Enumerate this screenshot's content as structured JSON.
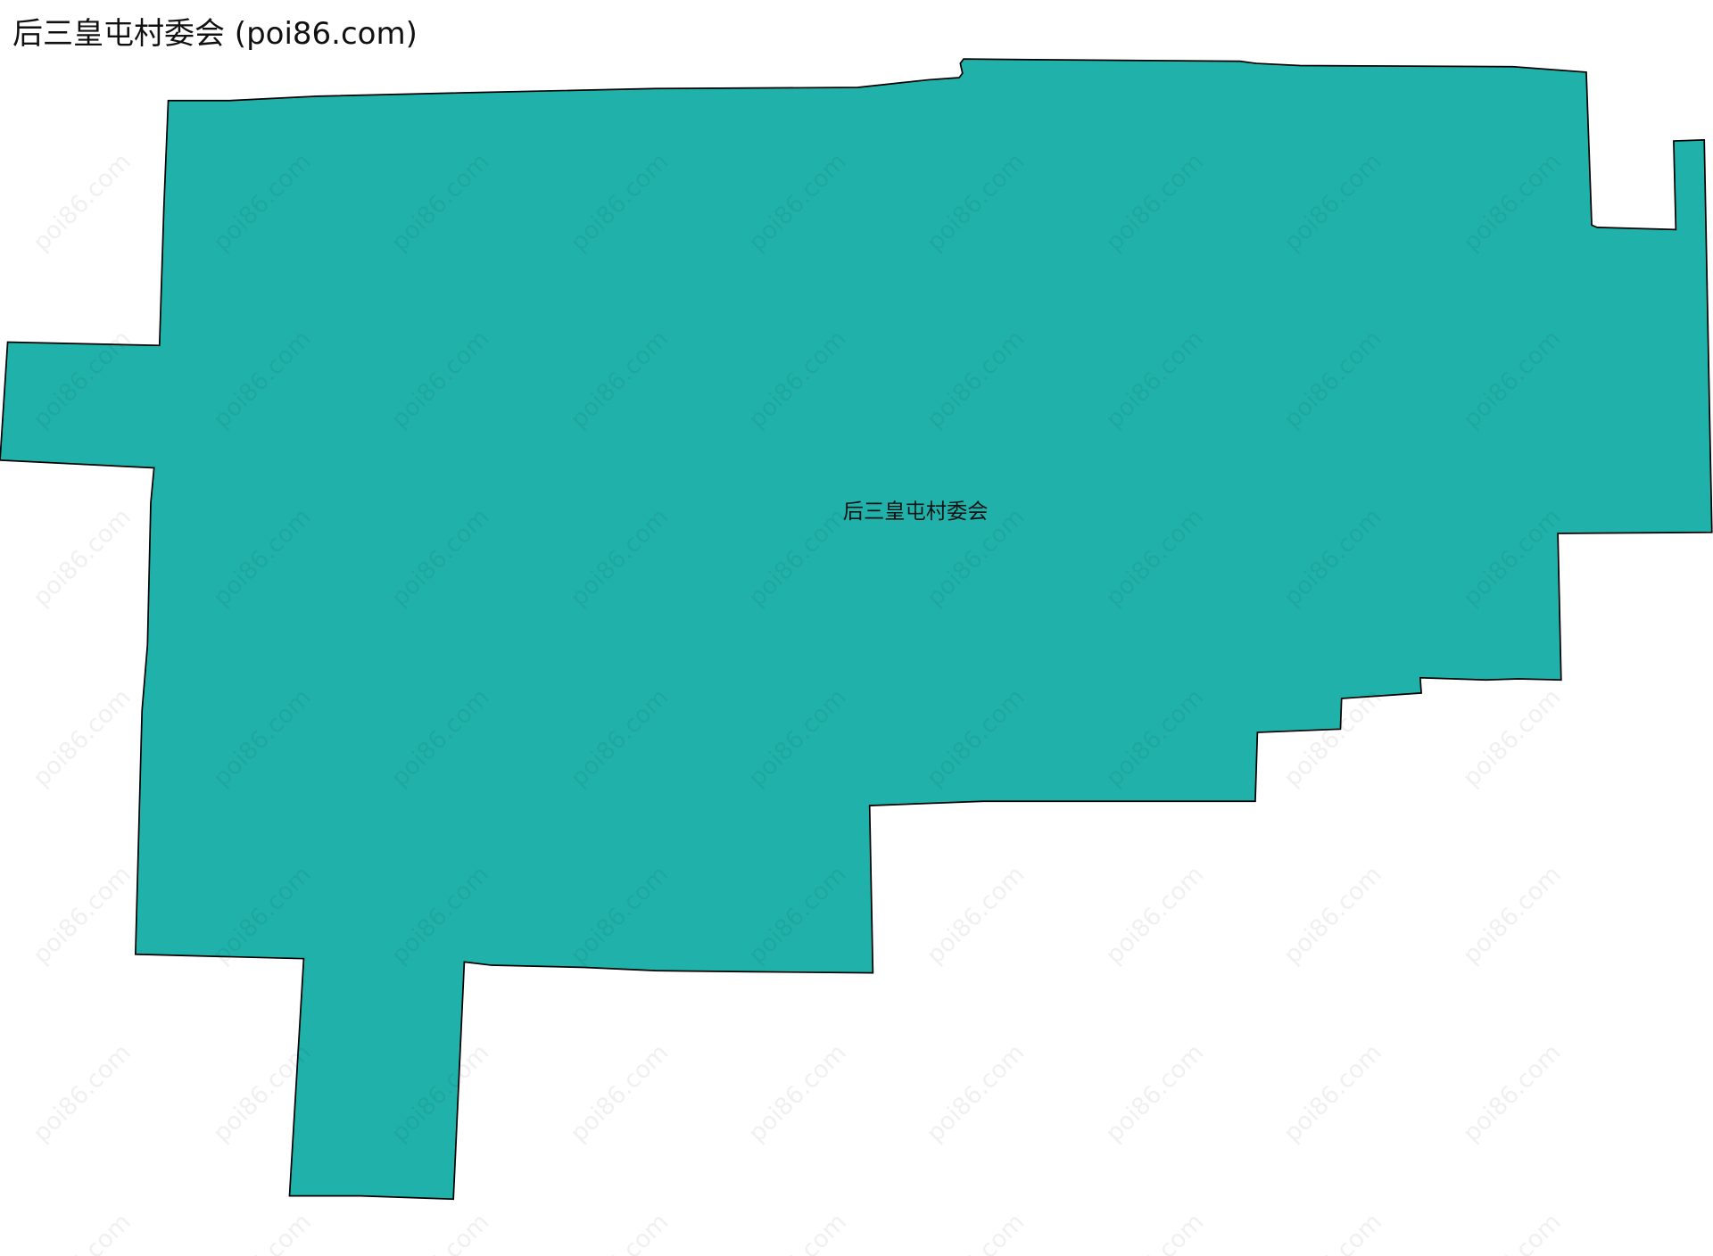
{
  "title": "后三皇屯村委会 (poi86.com)",
  "map": {
    "region_label": "后三皇屯村委会",
    "fill_color": "#20b2aa",
    "stroke_color": "#000000",
    "watermark": "poi86.com"
  }
}
